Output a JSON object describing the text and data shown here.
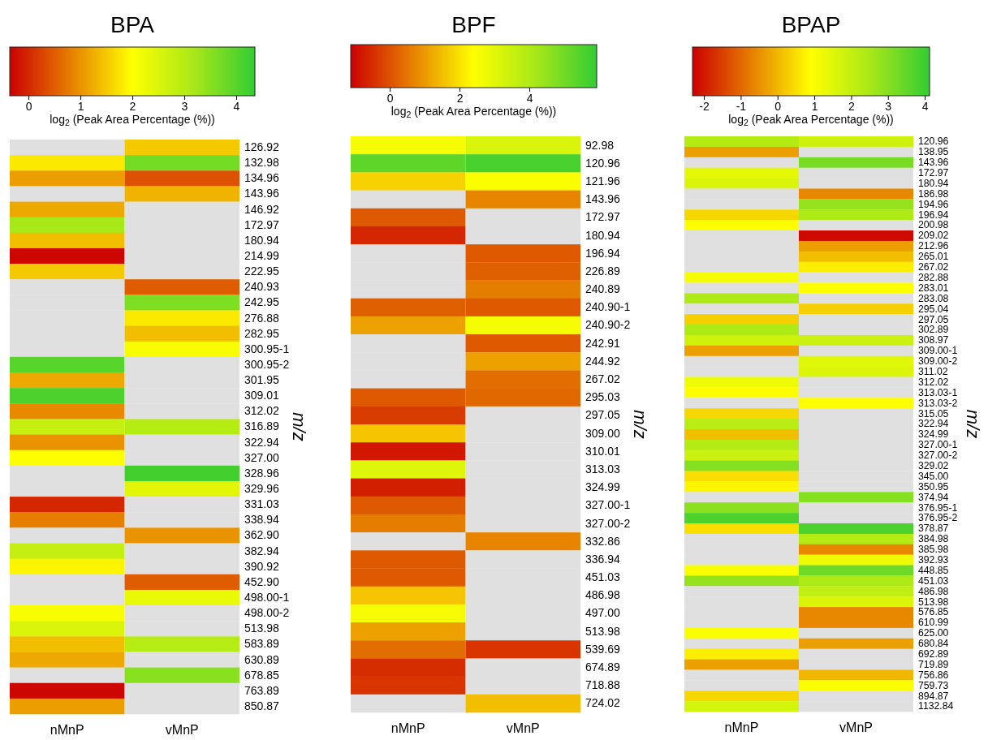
{
  "chart_data": [
    {
      "type": "heatmap",
      "title": "BPA",
      "clabel": "log$_{2}$ (Peak Area Percentage (%))",
      "ylabel": "m/z",
      "clim": [
        -0.36,
        4.36
      ],
      "cticks": [
        0,
        1,
        2,
        3,
        4
      ],
      "categories": [
        "nMnP",
        "vMnP"
      ],
      "y_categories": [
        "126.92",
        "132.98",
        "134.96",
        "143.96",
        "146.92",
        "172.97",
        "180.94",
        "214.99",
        "222.95",
        "240.93",
        "242.95",
        "276.88",
        "282.95",
        "300.95-1",
        "300.95-2",
        "301.95",
        "309.01",
        "312.02",
        "316.89",
        "322.94",
        "327.00",
        "328.96",
        "329.96",
        "331.03",
        "338.94",
        "362.90",
        "382.94",
        "390.92",
        "452.90",
        "498.00-1",
        "498.00-2",
        "513.98",
        "583.89",
        "630.89",
        "678.85",
        "763.89",
        "850.87"
      ],
      "cells": [
        [
          null,
          1.5
        ],
        [
          1.8,
          3.7
        ],
        [
          1.1,
          0.4
        ],
        [
          null,
          1.3
        ],
        [
          1.2,
          null
        ],
        [
          3.2,
          null
        ],
        [
          1.4,
          null
        ],
        [
          -0.3,
          null
        ],
        [
          1.5,
          null
        ],
        [
          null,
          0.5
        ],
        [
          null,
          3.6
        ],
        [
          null,
          1.8
        ],
        [
          null,
          1.4
        ],
        [
          null,
          2.1
        ],
        [
          4.0,
          null
        ],
        [
          1.2,
          null
        ],
        [
          4.1,
          null
        ],
        [
          0.9,
          null
        ],
        [
          2.8,
          3.0
        ],
        [
          1.0,
          null
        ],
        [
          2.0,
          null
        ],
        [
          null,
          4.2
        ],
        [
          null,
          2.4
        ],
        [
          0.0,
          null
        ],
        [
          0.8,
          null
        ],
        [
          null,
          1.0
        ],
        [
          2.8,
          null
        ],
        [
          1.9,
          null
        ],
        [
          null,
          0.5
        ],
        [
          null,
          2.3
        ],
        [
          2.1,
          null
        ],
        [
          2.5,
          null
        ],
        [
          1.4,
          3.0
        ],
        [
          1.2,
          null
        ],
        [
          null,
          3.5
        ],
        [
          -0.3,
          null
        ],
        [
          1.1,
          null
        ]
      ]
    },
    {
      "type": "heatmap",
      "title": "BPF",
      "clabel": "log$_{2}$ (Peak Area Percentage (%))",
      "ylabel": "m/z",
      "clim": [
        -1.12,
        5.93
      ],
      "cticks": [
        0,
        2,
        4
      ],
      "categories": [
        "nMnP",
        "vMnP"
      ],
      "y_categories": [
        "92.98",
        "120.96",
        "121.96",
        "143.96",
        "172.97",
        "180.94",
        "196.94",
        "226.89",
        "240.89",
        "240.90-1",
        "240.90-2",
        "242.91",
        "244.92",
        "267.02",
        "295.03",
        "297.05",
        "309.00",
        "310.01",
        "313.03",
        "324.99",
        "327.00-1",
        "327.00-2",
        "332.86",
        "336.94",
        "451.03",
        "486.98",
        "497.00",
        "513.98",
        "539.69",
        "674.89",
        "718.88",
        "724.02"
      ],
      "cells": [
        [
          2.6,
          3.2
        ],
        [
          5.3,
          5.6
        ],
        [
          1.8,
          2.5
        ],
        [
          null,
          0.7
        ],
        [
          0.1,
          null
        ],
        [
          -0.6,
          null
        ],
        [
          null,
          0.1
        ],
        [
          null,
          0.2
        ],
        [
          null,
          0.6
        ],
        [
          0.2,
          0.1
        ],
        [
          1.1,
          2.6
        ],
        [
          null,
          0.1
        ],
        [
          null,
          1.1
        ],
        [
          null,
          0.4
        ],
        [
          0.1,
          0.3
        ],
        [
          -0.3,
          null
        ],
        [
          1.6,
          null
        ],
        [
          -0.8,
          null
        ],
        [
          3.1,
          null
        ],
        [
          -0.7,
          null
        ],
        [
          0.1,
          null
        ],
        [
          0.6,
          null
        ],
        [
          null,
          0.7
        ],
        [
          0.1,
          null
        ],
        [
          0.1,
          null
        ],
        [
          1.6,
          null
        ],
        [
          2.6,
          null
        ],
        [
          1.1,
          null
        ],
        [
          0.4,
          -0.4
        ],
        [
          -0.5,
          null
        ],
        [
          -0.4,
          null
        ],
        [
          null,
          1.5
        ]
      ]
    },
    {
      "type": "heatmap",
      "title": "BPAP",
      "clabel": "log$_{2}$ (Peak Area Percentage (%))",
      "ylabel": "m/z",
      "clim": [
        -2.31,
        4.13
      ],
      "cticks": [
        -2,
        -1,
        0,
        1,
        2,
        3,
        4
      ],
      "categories": [
        "nMnP",
        "vMnP"
      ],
      "y_categories": [
        "120.96",
        "138.95",
        "143.96",
        "172.97",
        "180.94",
        "186.98",
        "194.96",
        "196.94",
        "200.98",
        "209.02",
        "212.96",
        "265.01",
        "267.02",
        "282.88",
        "283.01",
        "283.08",
        "295.04",
        "297.05",
        "302.89",
        "308.97",
        "309.00-1",
        "309.00-2",
        "311.02",
        "312.02",
        "313.03-1",
        "313.03-2",
        "315.05",
        "322.94",
        "324.99",
        "327.00-1",
        "327.00-2",
        "329.02",
        "345.00",
        "350.95",
        "374.94",
        "376.95-1",
        "376.95-2",
        "378.87",
        "384.98",
        "385.98",
        "392.93",
        "448.85",
        "451.03",
        "486.98",
        "513.98",
        "576.85",
        "610.99",
        "625.00",
        "680.84",
        "692.89",
        "719.89",
        "756.86",
        "759.73",
        "894.87",
        "1132.84"
      ],
      "cells": [
        [
          2.3,
          1.8
        ],
        [
          -0.3,
          null
        ],
        [
          null,
          3.2
        ],
        [
          1.4,
          null
        ],
        [
          1.6,
          null
        ],
        [
          null,
          -0.6
        ],
        [
          null,
          2.8
        ],
        [
          0.4,
          2.4
        ],
        [
          0.9,
          null
        ],
        [
          null,
          -2.2
        ],
        [
          null,
          -0.3
        ],
        [
          null,
          0.1
        ],
        [
          null,
          0.7
        ],
        [
          1.1,
          null
        ],
        [
          null,
          0.9
        ],
        [
          2.4,
          null
        ],
        [
          null,
          0.3
        ],
        [
          0.3,
          null
        ],
        [
          2.4,
          null
        ],
        [
          1.8,
          1.9
        ],
        [
          -0.3,
          null
        ],
        [
          null,
          1.5
        ],
        [
          null,
          1.6
        ],
        [
          1.2,
          null
        ],
        [
          0.9,
          null
        ],
        [
          null,
          0.9
        ],
        [
          0.4,
          null
        ],
        [
          2.2,
          null
        ],
        [
          0.1,
          null
        ],
        [
          2.3,
          null
        ],
        [
          1.9,
          null
        ],
        [
          3.0,
          null
        ],
        [
          0.5,
          null
        ],
        [
          0.8,
          null
        ],
        [
          null,
          3.0
        ],
        [
          2.9,
          null
        ],
        [
          3.8,
          null
        ],
        [
          0.5,
          3.8
        ],
        [
          null,
          2.3
        ],
        [
          null,
          -0.6
        ],
        [
          null,
          1.2
        ],
        [
          1.0,
          3.3
        ],
        [
          2.8,
          2.4
        ],
        [
          null,
          2.1
        ],
        [
          null,
          1.6
        ],
        [
          null,
          -0.6
        ],
        [
          null,
          -0.6
        ],
        [
          1.0,
          null
        ],
        [
          null,
          -0.3
        ],
        [
          0.7,
          null
        ],
        [
          -0.3,
          null
        ],
        [
          null,
          0.0
        ],
        [
          null,
          1.0
        ],
        [
          0.4,
          null
        ],
        [
          1.7,
          null
        ]
      ]
    }
  ]
}
